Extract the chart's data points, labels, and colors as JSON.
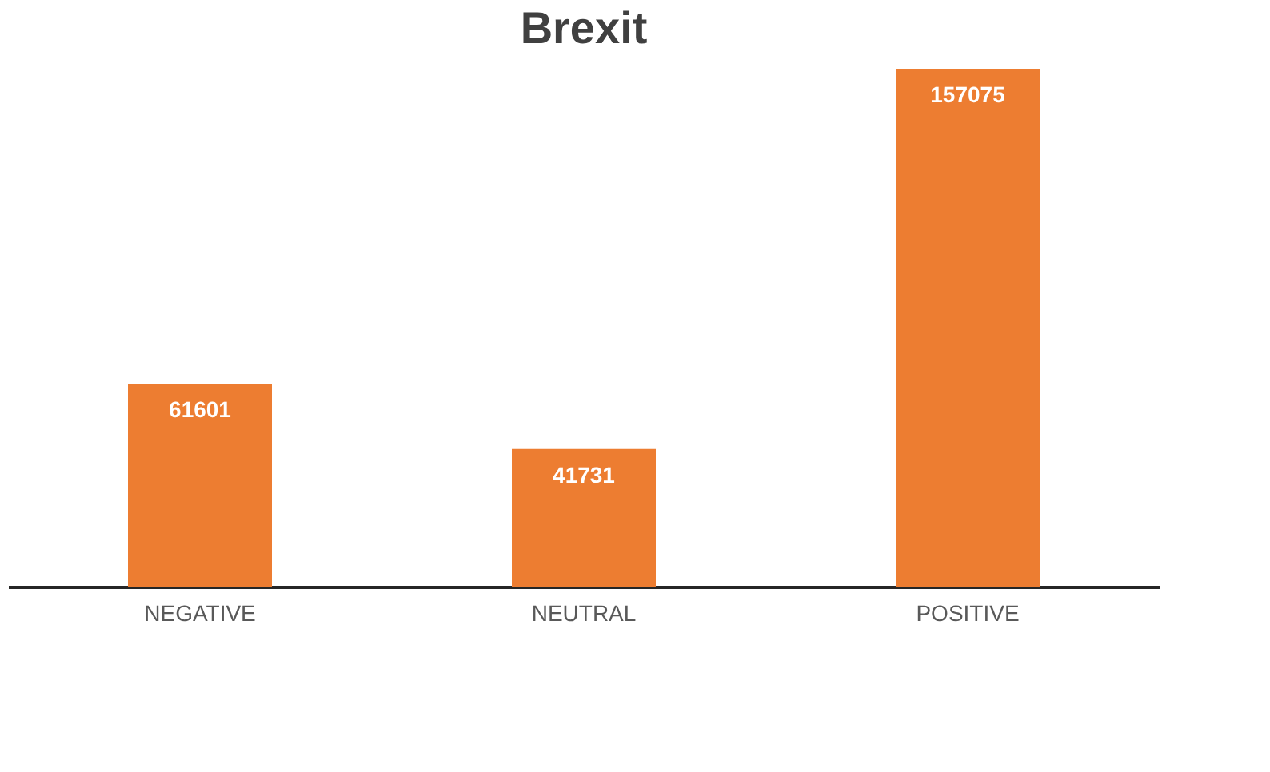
{
  "chart_data": {
    "type": "bar",
    "title": "Brexit",
    "categories": [
      "NEGATIVE",
      "NEUTRAL",
      "POSITIVE"
    ],
    "values": [
      61601,
      41731,
      157075
    ],
    "color": "#ed7d31",
    "data_labels": true
  }
}
